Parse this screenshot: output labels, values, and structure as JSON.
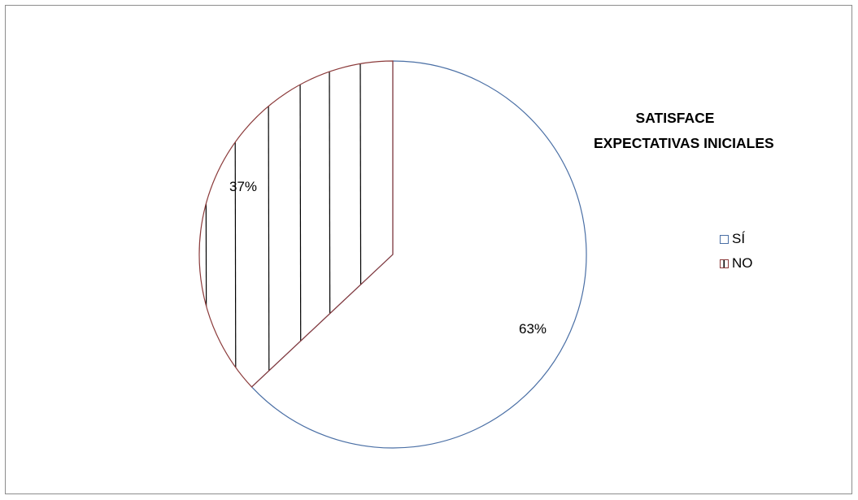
{
  "chart_data": {
    "type": "pie",
    "title": [
      "SATISFACE",
      "EXPECTATIVAS INICIALES"
    ],
    "slices": [
      {
        "name": "SÍ",
        "value": 63,
        "label": "63%",
        "border_color": "#4a6fa5",
        "fill": "#ffffff",
        "pattern": "none"
      },
      {
        "name": "NO",
        "value": 37,
        "label": "37%",
        "border_color": "#8b3a3a",
        "fill": "#ffffff",
        "pattern": "vertical-lines"
      }
    ],
    "legend_position": "right"
  }
}
